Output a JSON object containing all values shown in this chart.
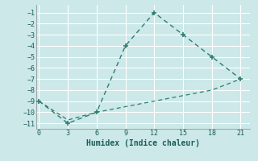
{
  "title": "",
  "xlabel": "Humidex (Indice chaleur)",
  "line1_x": [
    0,
    3,
    6,
    9,
    12,
    15,
    18,
    21
  ],
  "line1_y": [
    -9,
    -11,
    -10,
    -4,
    -1,
    -3,
    -5,
    -7
  ],
  "line2_x": [
    0,
    3,
    6,
    9,
    12,
    15,
    18,
    21
  ],
  "line2_y": [
    -9.0,
    -10.7,
    -10.0,
    -9.5,
    -9.0,
    -8.5,
    -8.0,
    -7.0
  ],
  "line_color": "#2e7d6e",
  "bg_color": "#cce8e8",
  "grid_color": "#ffffff",
  "xlim": [
    -0.3,
    22
  ],
  "ylim": [
    -11.5,
    -0.3
  ],
  "xticks": [
    0,
    3,
    6,
    9,
    12,
    15,
    18,
    21
  ],
  "yticks": [
    -1,
    -2,
    -3,
    -4,
    -5,
    -6,
    -7,
    -8,
    -9,
    -10,
    -11
  ]
}
